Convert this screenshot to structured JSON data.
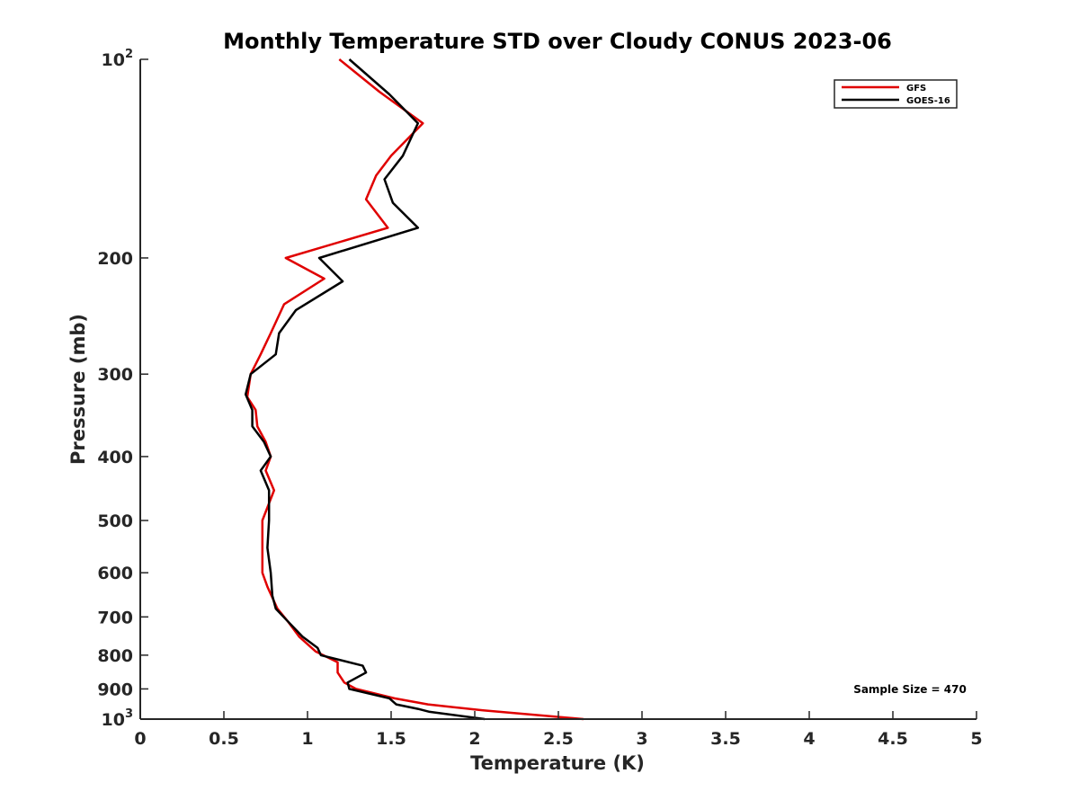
{
  "chart_data": {
    "type": "line",
    "title": "Monthly Temperature STD over Cloudy CONUS  2023-06",
    "xlabel": "Temperature (K)",
    "ylabel": "Pressure (mb)",
    "xlim": [
      0,
      5
    ],
    "ylim": [
      100,
      1000
    ],
    "yscale": "log",
    "yreversed": true,
    "grid": false,
    "legend_position": "top-right",
    "x_ticks": [
      "0",
      "0.5",
      "1",
      "1.5",
      "2",
      "2.5",
      "3",
      "3.5",
      "4",
      "4.5",
      "5"
    ],
    "y_ticks": [
      {
        "value": 100,
        "base": "10",
        "exp": "2"
      },
      {
        "value": 200,
        "label": "200"
      },
      {
        "value": 300,
        "label": "300"
      },
      {
        "value": 400,
        "label": "400"
      },
      {
        "value": 500,
        "label": "500"
      },
      {
        "value": 600,
        "label": "600"
      },
      {
        "value": 700,
        "label": "700"
      },
      {
        "value": 800,
        "label": "800"
      },
      {
        "value": 900,
        "label": "900"
      },
      {
        "value": 1000,
        "base": "10",
        "exp": "3"
      }
    ],
    "annotation": "Sample Size = 470",
    "series": [
      {
        "name": "GFS",
        "color": "#e00000",
        "points": [
          [
            1.19,
            100
          ],
          [
            1.43,
            112
          ],
          [
            1.69,
            125
          ],
          [
            1.5,
            140
          ],
          [
            1.41,
            150
          ],
          [
            1.35,
            163
          ],
          [
            1.48,
            180
          ],
          [
            0.87,
            200
          ],
          [
            1.1,
            215
          ],
          [
            0.86,
            235
          ],
          [
            0.78,
            260
          ],
          [
            0.72,
            280
          ],
          [
            0.66,
            300
          ],
          [
            0.64,
            325
          ],
          [
            0.69,
            340
          ],
          [
            0.7,
            360
          ],
          [
            0.75,
            380
          ],
          [
            0.78,
            400
          ],
          [
            0.75,
            420
          ],
          [
            0.8,
            450
          ],
          [
            0.73,
            500
          ],
          [
            0.73,
            550
          ],
          [
            0.73,
            600
          ],
          [
            0.76,
            630
          ],
          [
            0.82,
            680
          ],
          [
            0.88,
            710
          ],
          [
            0.95,
            750
          ],
          [
            1.05,
            790
          ],
          [
            1.18,
            820
          ],
          [
            1.18,
            850
          ],
          [
            1.22,
            880
          ],
          [
            1.29,
            900
          ],
          [
            1.52,
            930
          ],
          [
            1.72,
            950
          ],
          [
            2.05,
            970
          ],
          [
            2.65,
            1000
          ]
        ]
      },
      {
        "name": "GOES-16",
        "color": "#000000",
        "points": [
          [
            1.25,
            100
          ],
          [
            1.49,
            113
          ],
          [
            1.66,
            125
          ],
          [
            1.57,
            140
          ],
          [
            1.46,
            152
          ],
          [
            1.51,
            165
          ],
          [
            1.66,
            180
          ],
          [
            1.07,
            200
          ],
          [
            1.21,
            217
          ],
          [
            0.93,
            240
          ],
          [
            0.83,
            260
          ],
          [
            0.81,
            280
          ],
          [
            0.66,
            300
          ],
          [
            0.63,
            322
          ],
          [
            0.67,
            340
          ],
          [
            0.67,
            360
          ],
          [
            0.74,
            380
          ],
          [
            0.78,
            400
          ],
          [
            0.72,
            420
          ],
          [
            0.77,
            450
          ],
          [
            0.77,
            500
          ],
          [
            0.76,
            550
          ],
          [
            0.78,
            600
          ],
          [
            0.79,
            650
          ],
          [
            0.81,
            680
          ],
          [
            0.88,
            710
          ],
          [
            0.97,
            750
          ],
          [
            1.06,
            780
          ],
          [
            1.08,
            800
          ],
          [
            1.33,
            830
          ],
          [
            1.35,
            850
          ],
          [
            1.24,
            880
          ],
          [
            1.25,
            900
          ],
          [
            1.49,
            930
          ],
          [
            1.53,
            950
          ],
          [
            1.66,
            965
          ],
          [
            1.73,
            975
          ],
          [
            2.06,
            1000
          ]
        ]
      }
    ]
  }
}
